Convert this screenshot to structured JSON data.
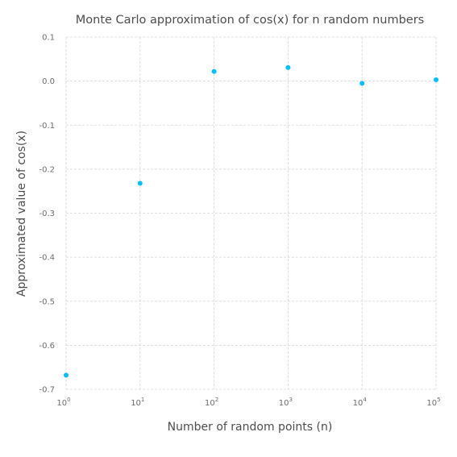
{
  "chart_data": {
    "type": "scatter",
    "title": "Monte Carlo approximation of cos(x) for n random numbers",
    "xlabel": "Number of random points (n)",
    "ylabel": "Approximated value of cos(x)",
    "xscale": "log10",
    "xlim": [
      1,
      100000
    ],
    "ylim": [
      -0.7,
      0.1
    ],
    "grid": true,
    "legend": "none",
    "color": "#00bfff",
    "x_ticks": [
      {
        "base": "10",
        "exp": "0"
      },
      {
        "base": "10",
        "exp": "1"
      },
      {
        "base": "10",
        "exp": "2"
      },
      {
        "base": "10",
        "exp": "3"
      },
      {
        "base": "10",
        "exp": "4"
      },
      {
        "base": "10",
        "exp": "5"
      }
    ],
    "y_ticks": [
      "0.1",
      "0.0",
      "-0.1",
      "-0.2",
      "-0.3",
      "-0.4",
      "-0.5",
      "-0.6",
      "-0.7"
    ],
    "x": [
      1,
      10,
      100,
      1000,
      10000,
      100000
    ],
    "y": [
      -0.668,
      -0.232,
      0.022,
      0.031,
      -0.005,
      0.003
    ]
  }
}
